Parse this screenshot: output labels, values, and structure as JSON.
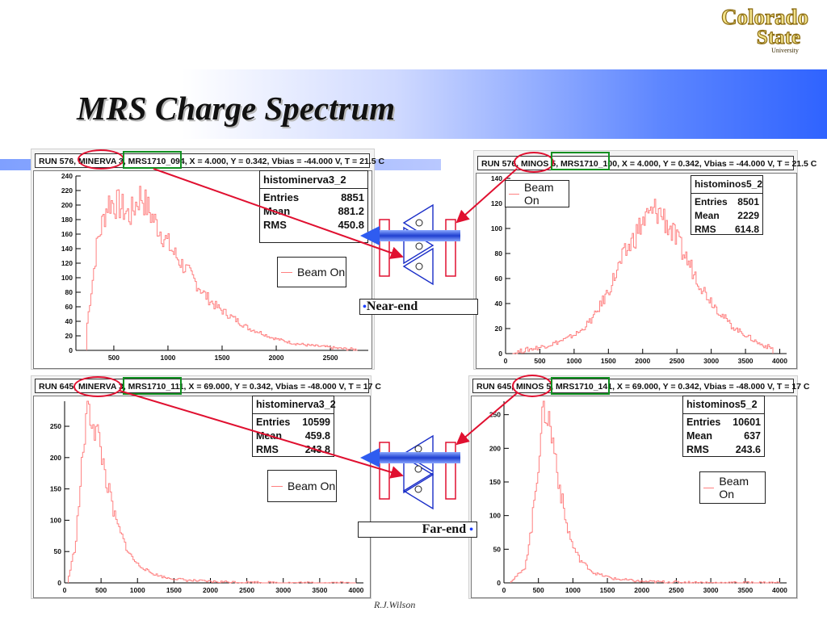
{
  "slide": {
    "title": "MRS Charge Spectrum",
    "footer": "R.J.Wilson",
    "logo": {
      "line1": "Colorado",
      "line2": "State",
      "line3": "University"
    },
    "near_label": "Near-end",
    "far_label": "Far-end",
    "colors": {
      "histogram": "#ff8080",
      "highlight_red": "#e01030",
      "highlight_green": "#109020",
      "arrow_blue": "#2f5cf0",
      "band_blue": "#2f63ff"
    }
  },
  "panels": [
    {
      "header": "RUN 576, MINERVA 3, MRS1710_094, X = 4.000, Y = 0.342, Vbias = -44.000 V, T = 21.5 C",
      "stats": {
        "name": "histominerva3_2",
        "entries_label": "Entries",
        "entries": "8851",
        "mean_label": "Mean",
        "mean": "881.2",
        "rms_label": "RMS",
        "rms": "450.8"
      },
      "legend": "Beam On"
    },
    {
      "header": "RUN 576, MINOS 5, MRS1710_100, X = 4.000, Y = 0.342, Vbias = -44.000 V, T = 21.5 C",
      "stats": {
        "name": "histominos5_2",
        "entries_label": "Entries",
        "entries": "8501",
        "mean_label": "Mean",
        "mean": "2229",
        "rms_label": "RMS",
        "rms": "614.8"
      },
      "legend": "Beam On"
    },
    {
      "header": "RUN 645, MINERVA 3, MRS1710_111, X = 69.000, Y = 0.342, Vbias = -48.000 V, T = 17 C",
      "stats": {
        "name": "histominerva3_2",
        "entries_label": "Entries",
        "entries": "10599",
        "mean_label": "Mean",
        "mean": "459.8",
        "rms_label": "RMS",
        "rms": "243.8"
      },
      "legend": "Beam On"
    },
    {
      "header": "RUN 645, MINOS 5, MRS1710_141, X = 69.000, Y = 0.342, Vbias = -48.000 V, T = 17 C",
      "stats": {
        "name": "histominos5_2",
        "entries_label": "Entries",
        "entries": "10601",
        "mean_label": "Mean",
        "mean": "637",
        "rms_label": "RMS",
        "rms": "243.6"
      },
      "legend": "Beam On"
    }
  ],
  "chart_data": [
    {
      "type": "line",
      "series": [
        {
          "name": "Beam On",
          "x": [
            250,
            350,
            450,
            550,
            650,
            750,
            850,
            950,
            1050,
            1150,
            1250,
            1350,
            1450,
            1550,
            1650,
            1750,
            1850,
            1950,
            2050,
            2150,
            2250,
            2350,
            2450,
            2550,
            2650,
            2750
          ],
          "y": [
            30,
            150,
            205,
            200,
            185,
            215,
            185,
            160,
            135,
            115,
            95,
            75,
            60,
            50,
            40,
            30,
            25,
            18,
            14,
            10,
            8,
            6,
            5,
            3,
            2,
            1
          ]
        }
      ],
      "xlim": [
        150,
        2850
      ],
      "ylim": [
        0,
        240
      ],
      "xticks": [
        500,
        1000,
        1500,
        2000,
        2500
      ],
      "yticks": [
        0,
        20,
        40,
        60,
        80,
        100,
        120,
        140,
        160,
        180,
        200,
        220,
        240
      ]
    },
    {
      "type": "line",
      "series": [
        {
          "name": "Beam On",
          "x": [
            100,
            300,
            500,
            700,
            900,
            1100,
            1300,
            1500,
            1700,
            1900,
            2000,
            2100,
            2200,
            2300,
            2400,
            2500,
            2700,
            2900,
            3100,
            3300,
            3500,
            3700,
            3900
          ],
          "y": [
            0,
            3,
            5,
            8,
            12,
            18,
            30,
            50,
            75,
            95,
            105,
            110,
            115,
            110,
            100,
            90,
            70,
            50,
            35,
            22,
            15,
            8,
            4
          ]
        }
      ],
      "xlim": [
        0,
        4100
      ],
      "ylim": [
        0,
        140
      ],
      "xticks": [
        0,
        500,
        1000,
        1500,
        2000,
        2500,
        3000,
        3500,
        4000
      ],
      "yticks": [
        0,
        20,
        40,
        60,
        80,
        100,
        120,
        140
      ]
    },
    {
      "type": "line",
      "series": [
        {
          "name": "Beam On",
          "x": [
            50,
            150,
            250,
            300,
            350,
            400,
            450,
            500,
            550,
            600,
            700,
            800,
            900,
            1000,
            1200,
            1400,
            1700,
            2000,
            2500,
            3000,
            3500,
            4000
          ],
          "y": [
            5,
            60,
            200,
            270,
            275,
            255,
            240,
            210,
            180,
            150,
            100,
            70,
            45,
            30,
            15,
            8,
            4,
            2,
            1,
            0,
            0,
            0
          ]
        }
      ],
      "xlim": [
        0,
        4100
      ],
      "ylim": [
        0,
        290
      ],
      "xticks": [
        0,
        500,
        1000,
        1500,
        2000,
        2500,
        3000,
        3500,
        4000
      ],
      "yticks": [
        0,
        50,
        100,
        150,
        200,
        250
      ]
    },
    {
      "type": "line",
      "series": [
        {
          "name": "Beam On",
          "x": [
            100,
            300,
            400,
            500,
            550,
            600,
            650,
            700,
            750,
            800,
            900,
            1000,
            1100,
            1300,
            1600,
            2000,
            2500,
            3000,
            3500,
            4000
          ],
          "y": [
            3,
            20,
            80,
            180,
            240,
            260,
            245,
            215,
            190,
            150,
            90,
            55,
            35,
            15,
            6,
            2,
            1,
            0,
            0,
            0
          ]
        }
      ],
      "xlim": [
        0,
        4100
      ],
      "ylim": [
        0,
        270
      ],
      "xticks": [
        0,
        500,
        1000,
        1500,
        2000,
        2500,
        3000,
        3500,
        4000
      ],
      "yticks": [
        0,
        50,
        100,
        150,
        200,
        250
      ]
    }
  ]
}
